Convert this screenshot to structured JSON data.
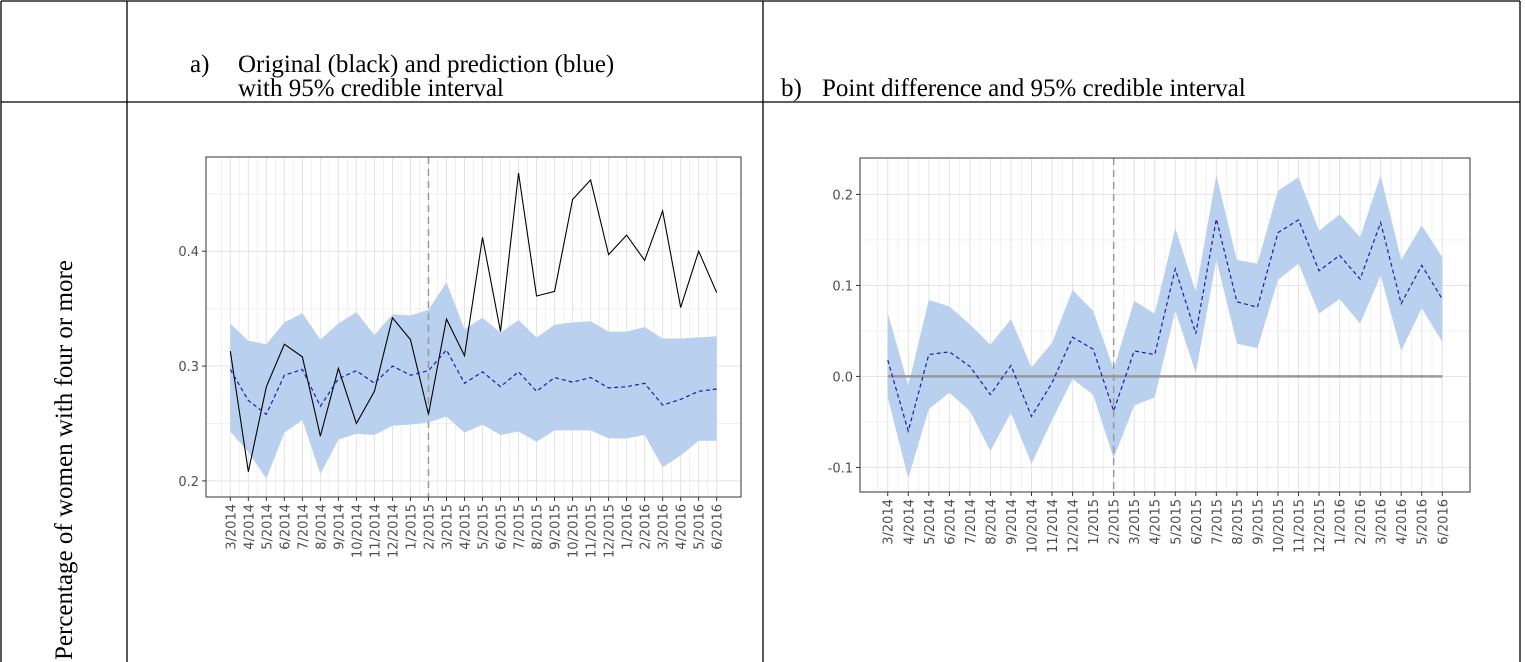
{
  "table": {
    "header_a_marker": "a)",
    "header_a": [
      "Original (black) and prediction (blue)",
      "with 95% credible interval"
    ],
    "header_b_marker": "b)",
    "header_b": "Point difference and 95% credible interval",
    "row_label": "Percentage of women with four or more"
  },
  "chart_data": [
    {
      "type": "line",
      "categories": [
        "3/2014",
        "4/2014",
        "5/2014",
        "6/2014",
        "7/2014",
        "8/2014",
        "9/2014",
        "10/2014",
        "11/2014",
        "12/2014",
        "1/2015",
        "2/2015",
        "3/2015",
        "4/2015",
        "5/2015",
        "6/2015",
        "7/2015",
        "8/2015",
        "9/2015",
        "10/2015",
        "11/2015",
        "12/2015",
        "1/2016",
        "2/2016",
        "3/2016",
        "4/2016",
        "5/2016",
        "6/2016"
      ],
      "series": [
        {
          "color": "#000000",
          "dashed": false,
          "values": [
            0.313,
            0.208,
            0.282,
            0.319,
            0.308,
            0.239,
            0.298,
            0.25,
            0.278,
            0.342,
            0.323,
            0.258,
            0.341,
            0.309,
            0.412,
            0.33,
            0.468,
            0.361,
            0.365,
            0.445,
            0.462,
            0.397,
            0.414,
            0.392,
            0.435,
            0.351,
            0.4,
            0.364
          ]
        },
        {
          "color": "#1c1ca8",
          "dashed": true,
          "values": [
            0.297,
            0.27,
            0.258,
            0.292,
            0.297,
            0.265,
            0.289,
            0.296,
            0.285,
            0.3,
            0.292,
            0.296,
            0.314,
            0.285,
            0.295,
            0.282,
            0.295,
            0.278,
            0.29,
            0.286,
            0.29,
            0.281,
            0.282,
            0.285,
            0.266,
            0.271,
            0.278,
            0.28
          ]
        }
      ],
      "band": {
        "color": "#b9d1ee",
        "lower": [
          0.243,
          0.225,
          0.202,
          0.242,
          0.253,
          0.206,
          0.236,
          0.241,
          0.24,
          0.248,
          0.249,
          0.251,
          0.256,
          0.242,
          0.249,
          0.24,
          0.243,
          0.234,
          0.244,
          0.244,
          0.244,
          0.237,
          0.237,
          0.24,
          0.212,
          0.222,
          0.235,
          0.235
        ],
        "upper": [
          0.337,
          0.322,
          0.319,
          0.338,
          0.346,
          0.323,
          0.337,
          0.347,
          0.327,
          0.345,
          0.344,
          0.349,
          0.373,
          0.332,
          0.342,
          0.329,
          0.34,
          0.325,
          0.336,
          0.338,
          0.339,
          0.33,
          0.33,
          0.334,
          0.324,
          0.324,
          0.325,
          0.326
        ]
      },
      "vline": "2/2015",
      "ylim": [
        0.186,
        0.482
      ],
      "yticks": [
        0.2,
        0.3,
        0.4
      ],
      "yminor": [
        0.25,
        0.35,
        0.45
      ],
      "grid": true
    },
    {
      "type": "line",
      "categories": [
        "3/2014",
        "4/2014",
        "5/2014",
        "6/2014",
        "7/2014",
        "8/2014",
        "9/2014",
        "10/2014",
        "11/2014",
        "12/2014",
        "1/2015",
        "2/2015",
        "3/2015",
        "4/2015",
        "5/2015",
        "6/2015",
        "7/2015",
        "8/2015",
        "9/2015",
        "10/2015",
        "11/2015",
        "12/2015",
        "1/2016",
        "2/2016",
        "3/2016",
        "4/2016",
        "5/2016",
        "6/2016"
      ],
      "series": [
        {
          "color": "#1c1ca8",
          "dashed": true,
          "values": [
            0.018,
            -0.06,
            0.024,
            0.027,
            0.011,
            -0.02,
            0.012,
            -0.044,
            -0.007,
            0.043,
            0.03,
            -0.038,
            0.028,
            0.024,
            0.118,
            0.047,
            0.173,
            0.082,
            0.076,
            0.158,
            0.172,
            0.116,
            0.133,
            0.107,
            0.169,
            0.08,
            0.122,
            0.085
          ]
        }
      ],
      "band": {
        "color": "#b9d1ee",
        "lower": [
          -0.023,
          -0.112,
          -0.036,
          -0.018,
          -0.038,
          -0.082,
          -0.04,
          -0.096,
          -0.048,
          -0.003,
          -0.02,
          -0.09,
          -0.032,
          -0.023,
          0.072,
          0.004,
          0.128,
          0.036,
          0.031,
          0.106,
          0.124,
          0.069,
          0.085,
          0.058,
          0.111,
          0.028,
          0.075,
          0.038
        ],
        "upper": [
          0.07,
          -0.01,
          0.084,
          0.077,
          0.057,
          0.035,
          0.063,
          0.01,
          0.037,
          0.095,
          0.072,
          0.008,
          0.083,
          0.069,
          0.163,
          0.093,
          0.221,
          0.128,
          0.124,
          0.204,
          0.219,
          0.16,
          0.178,
          0.153,
          0.221,
          0.128,
          0.166,
          0.131
        ]
      },
      "vline": "2/2015",
      "hline": 0,
      "ylim": [
        -0.127,
        0.24
      ],
      "yticks": [
        -0.1,
        {
          "value": 0,
          "label": "0.0"
        },
        0.1,
        0.2
      ],
      "yminor": [
        -0.05,
        0.05,
        0.15
      ],
      "grid": true
    }
  ]
}
